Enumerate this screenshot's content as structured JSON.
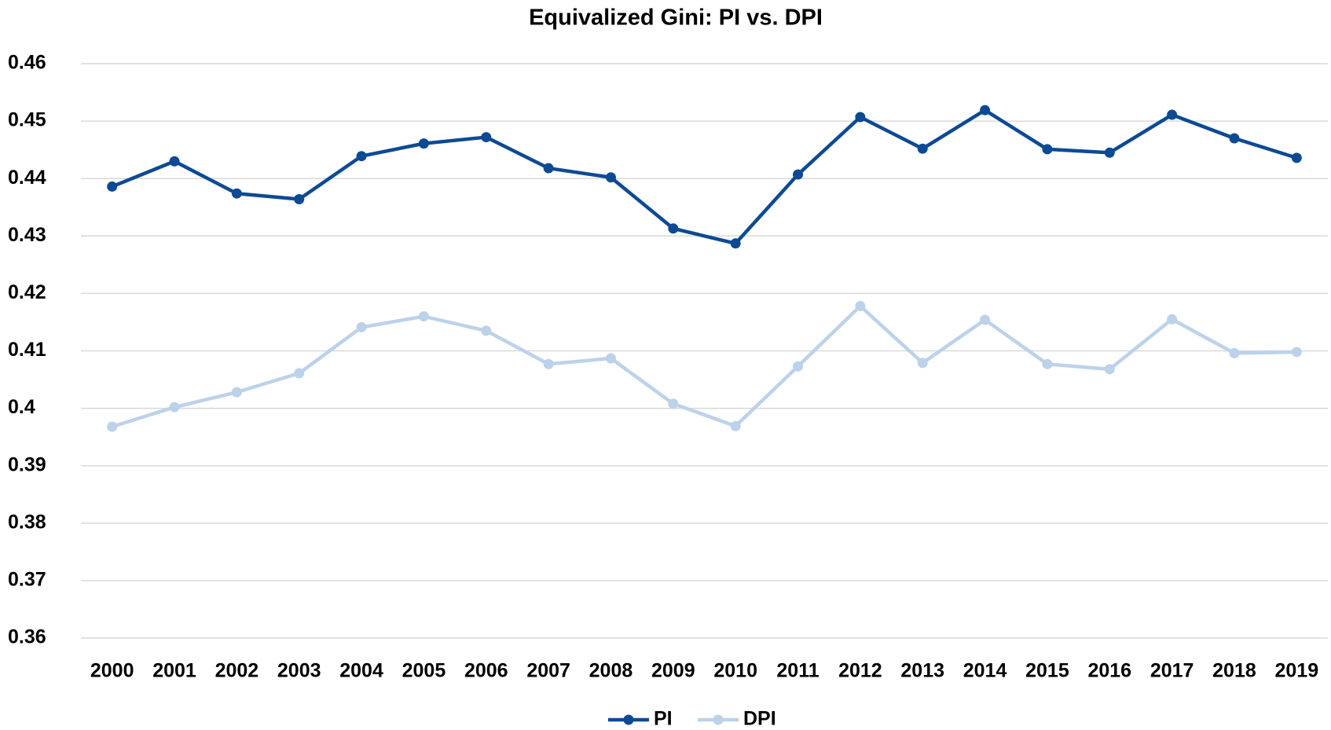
{
  "chart_data": {
    "type": "line",
    "title": "Equivalized Gini: PI vs. DPI",
    "categories": [
      "2000",
      "2001",
      "2002",
      "2003",
      "2004",
      "2005",
      "2006",
      "2007",
      "2008",
      "2009",
      "2010",
      "2011",
      "2012",
      "2013",
      "2014",
      "2015",
      "2016",
      "2017",
      "2018",
      "2019"
    ],
    "series": [
      {
        "name": "PI",
        "color": "#0d4a94",
        "values": [
          0.4386,
          0.443,
          0.4374,
          0.4364,
          0.4439,
          0.4461,
          0.4472,
          0.4418,
          0.4402,
          0.4313,
          0.4287,
          0.4407,
          0.4507,
          0.4452,
          0.4519,
          0.4451,
          0.4445,
          0.4511,
          0.447,
          0.4436
        ]
      },
      {
        "name": "DPI",
        "color": "#bcd2ea",
        "values": [
          0.3968,
          0.4002,
          0.4028,
          0.4061,
          0.4141,
          0.416,
          0.4135,
          0.4077,
          0.4087,
          0.4008,
          0.3969,
          0.4073,
          0.4178,
          0.4079,
          0.4154,
          0.4077,
          0.4068,
          0.4155,
          0.4096,
          0.4098
        ]
      }
    ],
    "ylim": [
      0.36,
      0.46
    ],
    "yticks": [
      0.36,
      0.37,
      0.38,
      0.39,
      0.4,
      0.41,
      0.42,
      0.43,
      0.44,
      0.45,
      0.46
    ],
    "grid": true,
    "legend": "bottom"
  }
}
